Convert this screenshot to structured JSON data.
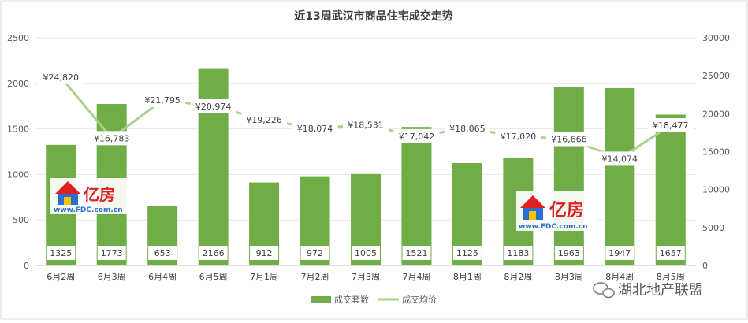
{
  "chart_data": {
    "type": "bar",
    "title": "近13周武汉市商品住宅成交走势",
    "categories": [
      "6月2周",
      "6月3周",
      "6月4周",
      "6月5周",
      "7月1周",
      "7月2周",
      "7月3周",
      "7月4周",
      "8月1周",
      "8月2周",
      "8月3周",
      "8月4周",
      "8月5周"
    ],
    "series": [
      {
        "name": "成交套数",
        "type": "bar",
        "axis": "left",
        "values": [
          1325,
          1773,
          653,
          2166,
          912,
          972,
          1005,
          1521,
          1125,
          1183,
          1963,
          1947,
          1657
        ],
        "labels": [
          "1325",
          "1773",
          "653",
          "2166",
          "912",
          "972",
          "1005",
          "1521",
          "1125",
          "1183",
          "1963",
          "1947",
          "1657"
        ]
      },
      {
        "name": "成交均价",
        "type": "line",
        "axis": "right",
        "values": [
          24820,
          16783,
          21795,
          20974,
          19226,
          18074,
          18531,
          17042,
          18065,
          17020,
          16666,
          14074,
          18477
        ],
        "labels": [
          "¥24,820",
          "¥16,783",
          "¥21,795",
          "¥20,974",
          "¥19,226",
          "¥18,074",
          "¥18,531",
          "¥17,042",
          "¥18,065",
          "¥17,020",
          "¥16,666",
          "¥14,074",
          "¥18,477"
        ]
      }
    ],
    "y_left": {
      "min": 0,
      "max": 2500,
      "ticks": [
        "0",
        "500",
        "1000",
        "1500",
        "2000",
        "2500"
      ]
    },
    "y_right": {
      "min": 0,
      "max": 30000,
      "ticks": [
        "0",
        "5000",
        "10000",
        "15000",
        "20000",
        "25000",
        "30000"
      ]
    },
    "legend_position": "bottom",
    "grid": true,
    "colors": {
      "bar": "#70ad47",
      "line": "#a9d18e"
    }
  },
  "watermarks": {
    "logo_text": "亿房",
    "logo_url_text": "www.FDC.com.cn",
    "wechat_text": "湖北地产联盟"
  }
}
